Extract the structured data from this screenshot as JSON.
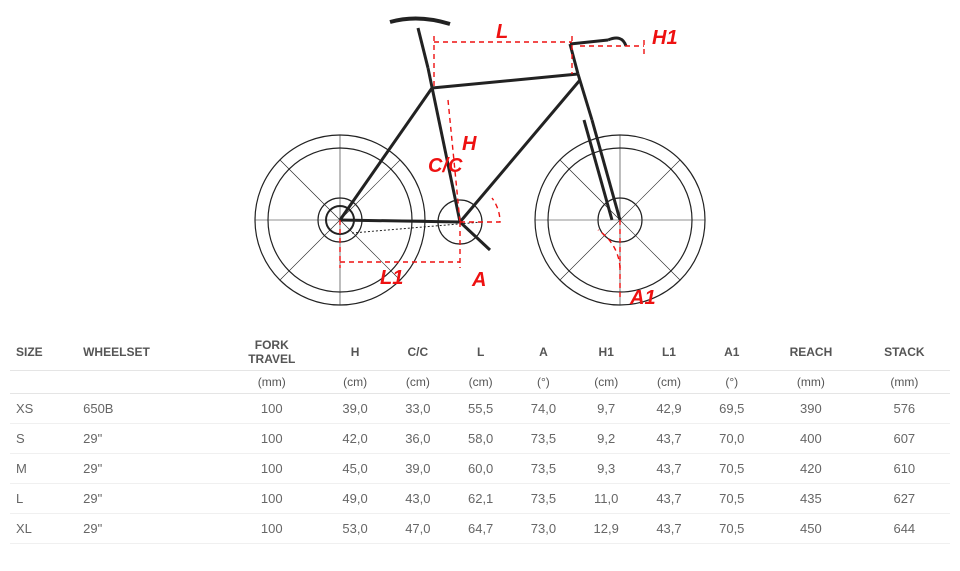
{
  "diagram": {
    "labels": [
      "L",
      "H1",
      "H",
      "C/C",
      "L1",
      "A",
      "A1"
    ],
    "label_color": "#e11",
    "label_font": "italic bold 20px Arial",
    "line_color": "#e11",
    "bike_stroke": "#222"
  },
  "table": {
    "columns": [
      "SIZE",
      "WHEELSET",
      "FORK TRAVEL",
      "H",
      "C/C",
      "L",
      "A",
      "H1",
      "L1",
      "A1",
      "REACH",
      "STACK"
    ],
    "units": [
      "",
      "",
      "(mm)",
      "(cm)",
      "(cm)",
      "(cm)",
      "(°)",
      "(cm)",
      "(cm)",
      "(°)",
      "(mm)",
      "(mm)"
    ],
    "rows": [
      [
        "XS",
        "650B",
        "100",
        "39,0",
        "33,0",
        "55,5",
        "74,0",
        "9,7",
        "42,9",
        "69,5",
        "390",
        "576"
      ],
      [
        "S",
        "29\"",
        "100",
        "42,0",
        "36,0",
        "58,0",
        "73,5",
        "9,2",
        "43,7",
        "70,0",
        "400",
        "607"
      ],
      [
        "M",
        "29\"",
        "100",
        "45,0",
        "39,0",
        "60,0",
        "73,5",
        "9,3",
        "43,7",
        "70,5",
        "420",
        "610"
      ],
      [
        "L",
        "29\"",
        "100",
        "49,0",
        "43,0",
        "62,1",
        "73,5",
        "11,0",
        "43,7",
        "70,5",
        "435",
        "627"
      ],
      [
        "XL",
        "29\"",
        "100",
        "53,0",
        "47,0",
        "64,7",
        "73,0",
        "12,9",
        "43,7",
        "70,5",
        "450",
        "644"
      ]
    ],
    "border_color": "#e5e5e5",
    "text_color": "#666",
    "header_color": "#555",
    "font_size": 13
  }
}
